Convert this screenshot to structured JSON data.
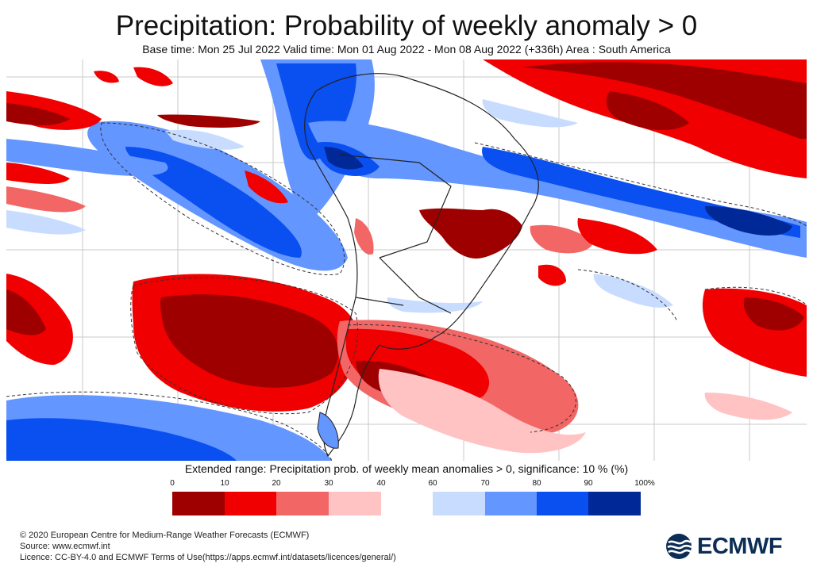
{
  "header": {
    "title": "Precipitation: Probability of weekly anomaly > 0",
    "subtitle": "Base time: Mon 25 Jul 2022 Valid time: Mon 01 Aug 2022 - Mon 08 Aug 2022 (+336h) Area : South America"
  },
  "legend": {
    "title": "Extended range: Precipitation prob. of weekly mean anomalies > 0, significance: 10 % (%)",
    "ticks": [
      "0",
      "10",
      "20",
      "30",
      "40",
      "60",
      "70",
      "80",
      "90",
      "100%"
    ],
    "low_colors": [
      "#9e0000",
      "#f00000",
      "#f26666",
      "#ffc3c3"
    ],
    "high_colors": [
      "#c8dcff",
      "#6496ff",
      "#0a50f0",
      "#002896"
    ]
  },
  "footer": {
    "line1": "© 2020 European Centre for Medium-Range Weather Forecasts (ECMWF)",
    "line2": "Source: www.ecmwf.int",
    "line3": "Licence: CC-BY-4.0 and ECMWF Terms of Use(https://apps.ecmwf.int/datasets/licences/general/)"
  },
  "logo": {
    "text": "ECMWF",
    "color": "#0c2d55"
  },
  "map": {
    "area": "South America",
    "colors": {
      "dark_red": "#9e0000",
      "red": "#f00000",
      "light_red": "#f26666",
      "pale_red": "#ffc3c3",
      "pale_blue": "#c8dcff",
      "light_blue": "#6496ff",
      "blue": "#0a50f0",
      "dark_blue": "#002896"
    }
  }
}
